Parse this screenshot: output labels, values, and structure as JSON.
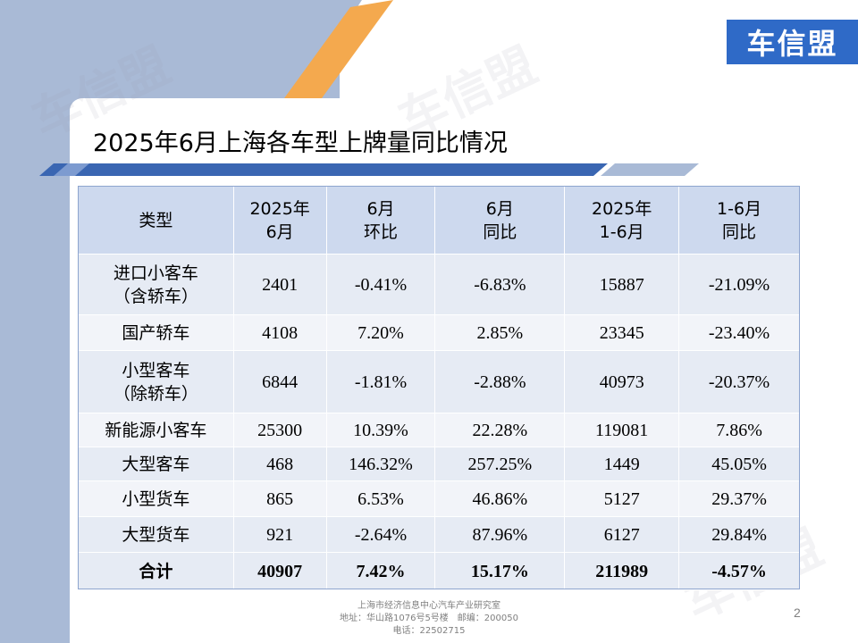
{
  "logo": {
    "text": "车信盟"
  },
  "title": "2025年6月上海各车型上牌量同比情况",
  "table": {
    "headers": [
      [
        "类型"
      ],
      [
        "2025年",
        "6月"
      ],
      [
        "6月",
        "环比"
      ],
      [
        "6月",
        "同比"
      ],
      [
        "2025年",
        "1-6月"
      ],
      [
        "1-6月",
        "同比"
      ]
    ],
    "rows": [
      {
        "type": [
          "进口小客车",
          "（含轿车）"
        ],
        "v": [
          "2401",
          "-0.41%",
          "-6.83%",
          "15887",
          "-21.09%"
        ]
      },
      {
        "type": [
          "国产轿车"
        ],
        "v": [
          "4108",
          "7.20%",
          "2.85%",
          "23345",
          "-23.40%"
        ]
      },
      {
        "type": [
          "小型客车",
          "（除轿车）"
        ],
        "v": [
          "6844",
          "-1.81%",
          "-2.88%",
          "40973",
          "-20.37%"
        ]
      },
      {
        "type": [
          "新能源小客车"
        ],
        "v": [
          "25300",
          "10.39%",
          "22.28%",
          "119081",
          "7.86%"
        ]
      },
      {
        "type": [
          "大型客车"
        ],
        "v": [
          "468",
          "146.32%",
          "257.25%",
          "1449",
          "45.05%"
        ]
      },
      {
        "type": [
          "小型货车"
        ],
        "v": [
          "865",
          "6.53%",
          "46.86%",
          "5127",
          "29.37%"
        ]
      },
      {
        "type": [
          "大型货车"
        ],
        "v": [
          "921",
          "-2.64%",
          "87.96%",
          "6127",
          "29.84%"
        ]
      }
    ],
    "total": {
      "type": "合计",
      "v": [
        "40907",
        "7.42%",
        "15.17%",
        "211989",
        "-4.57%"
      ]
    }
  },
  "footer": {
    "line1": "上海市经济信息中心汽车产业研究室",
    "line2": "地址：华山路1076号5号楼　邮编：200050",
    "line3": "电话：22502715"
  },
  "page_number": "2",
  "colors": {
    "accent_blue": "#2f6ac7",
    "header_fill": "#cdd9ee",
    "row_fill": "#e6ebf4",
    "orange": "#f4a94e"
  }
}
